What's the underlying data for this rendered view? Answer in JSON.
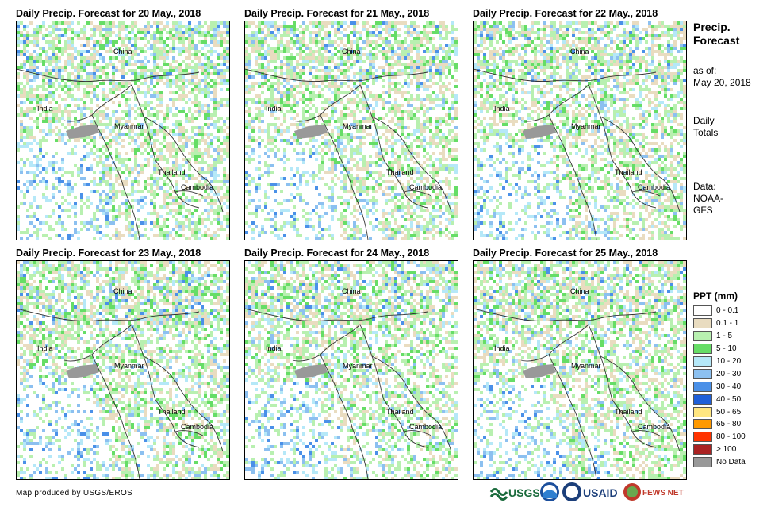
{
  "panels": [
    {
      "title": "Daily Precip. Forecast for 20 May., 2018"
    },
    {
      "title": "Daily Precip. Forecast for 21 May., 2018"
    },
    {
      "title": "Daily Precip. Forecast for 22 May., 2018"
    },
    {
      "title": "Daily Precip. Forecast for 23 May., 2018"
    },
    {
      "title": "Daily Precip. Forecast for 24 May., 2018"
    },
    {
      "title": "Daily Precip. Forecast for 25 May., 2018"
    }
  ],
  "places": {
    "china": "China",
    "india": "India",
    "myanmar": "Myanmar",
    "thailand": "Thailand",
    "cambodia": "Cambodia"
  },
  "side": {
    "title_line1": "Precip.",
    "title_line2": "Forecast",
    "asof_line1": "as of:",
    "asof_line2": "May 20, 2018",
    "totals_line1": "Daily",
    "totals_line2": "Totals",
    "data_line1": "Data:",
    "data_line2": "NOAA-",
    "data_line3": "GFS"
  },
  "legend": {
    "title": "PPT (mm)",
    "items": [
      {
        "label": "0 - 0.1",
        "color": "#ffffff"
      },
      {
        "label": "0.1 - 1",
        "color": "#e9dcc0"
      },
      {
        "label": "1 - 5",
        "color": "#b8f0b0"
      },
      {
        "label": "5 - 10",
        "color": "#66dd66"
      },
      {
        "label": "10 - 20",
        "color": "#b5e8f8"
      },
      {
        "label": "20 - 30",
        "color": "#8cc0f0"
      },
      {
        "label": "30 - 40",
        "color": "#4a90e8"
      },
      {
        "label": "40 - 50",
        "color": "#1f5fd8"
      },
      {
        "label": "50 - 65",
        "color": "#ffe680"
      },
      {
        "label": "65 - 80",
        "color": "#ff9900"
      },
      {
        "label": "80 - 100",
        "color": "#ff3300"
      },
      {
        "label": "> 100",
        "color": "#aa2222"
      },
      {
        "label": "No Data",
        "color": "#999999"
      }
    ]
  },
  "credit": "Map produced by USGS/EROS",
  "logos": {
    "usgs": "USGS",
    "usaid": "USAID",
    "fewsnet": "FEWS NET"
  }
}
